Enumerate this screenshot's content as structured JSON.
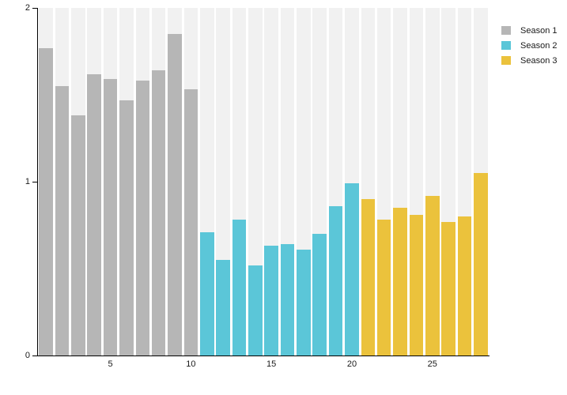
{
  "chart_data": {
    "type": "bar",
    "title": "",
    "xlabel": "",
    "ylabel": "",
    "ylim": [
      0,
      2
    ],
    "yticks": [
      0,
      1,
      2
    ],
    "xticks": [
      5,
      10,
      15,
      20,
      25
    ],
    "grid": false,
    "legend_position": "top-right",
    "x": [
      1,
      2,
      3,
      4,
      5,
      6,
      7,
      8,
      9,
      10,
      11,
      12,
      13,
      14,
      15,
      16,
      17,
      18,
      19,
      20,
      21,
      22,
      23,
      24,
      25,
      26,
      27,
      28
    ],
    "series": [
      {
        "name": "Season 1",
        "color": "#b6b6b6",
        "x_start": 1,
        "values": [
          1.77,
          1.55,
          1.38,
          1.62,
          1.59,
          1.47,
          1.58,
          1.64,
          1.85,
          1.53
        ]
      },
      {
        "name": "Season 2",
        "color": "#5bc6d8",
        "x_start": 11,
        "values": [
          0.71,
          0.55,
          0.78,
          0.52,
          0.63,
          0.64,
          0.61,
          0.7,
          0.86,
          0.99
        ]
      },
      {
        "name": "Season 3",
        "color": "#ebc23c",
        "x_start": 21,
        "values": [
          0.9,
          0.78,
          0.85,
          0.81,
          0.92,
          0.77,
          0.8,
          1.05
        ]
      }
    ],
    "background_column_color": "#f1f1f1",
    "axis_color": "#000000",
    "text_color": "#1a1a1a"
  },
  "legend": {
    "items": [
      {
        "label": "Season 1",
        "color": "#b6b6b6"
      },
      {
        "label": "Season 2",
        "color": "#5bc6d8"
      },
      {
        "label": "Season 3",
        "color": "#ebc23c"
      }
    ]
  }
}
